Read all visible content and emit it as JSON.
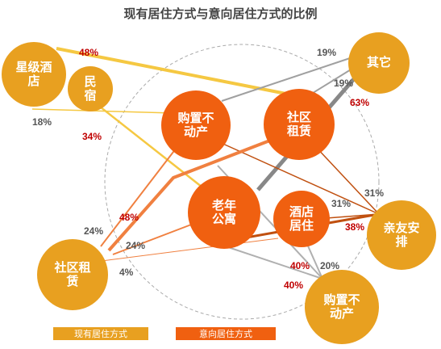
{
  "title": "现有居住方式与意向居住方式的比例",
  "colors": {
    "existing": "#e8a020",
    "existing_light": "#f5c842",
    "intended": "#f06010",
    "gray": "#a0a0a0",
    "brown": "#c05010",
    "dashed_circle": "#999999"
  },
  "nodes": {
    "star_hotel": "星级酒\n店",
    "homestay": "民\n宿",
    "others": "其它",
    "relatives": "亲友安\n排",
    "community_rent_existing": "社区租\n赁",
    "buy_property_existing": "购置不\n动产",
    "buy_property_intended": "购置不\n动产",
    "community_rent_intended": "社区\n租赁",
    "senior_apartment": "老年\n公寓",
    "hotel_stay": "酒店\n居住"
  },
  "percentages": {
    "p48_star": "48%",
    "p18": "18%",
    "p34": "34%",
    "p19_a": "19%",
    "p19_b": "19%",
    "p63": "63%",
    "p31_a": "31%",
    "p31_b": "31%",
    "p38": "38%",
    "p24_a": "24%",
    "p48_rent": "48%",
    "p24_b": "24%",
    "p4": "4%",
    "p40_a": "40%",
    "p20": "20%",
    "p40_b": "40%"
  },
  "legend": {
    "existing": "现有居住方式",
    "intended": "意向居住方式"
  }
}
